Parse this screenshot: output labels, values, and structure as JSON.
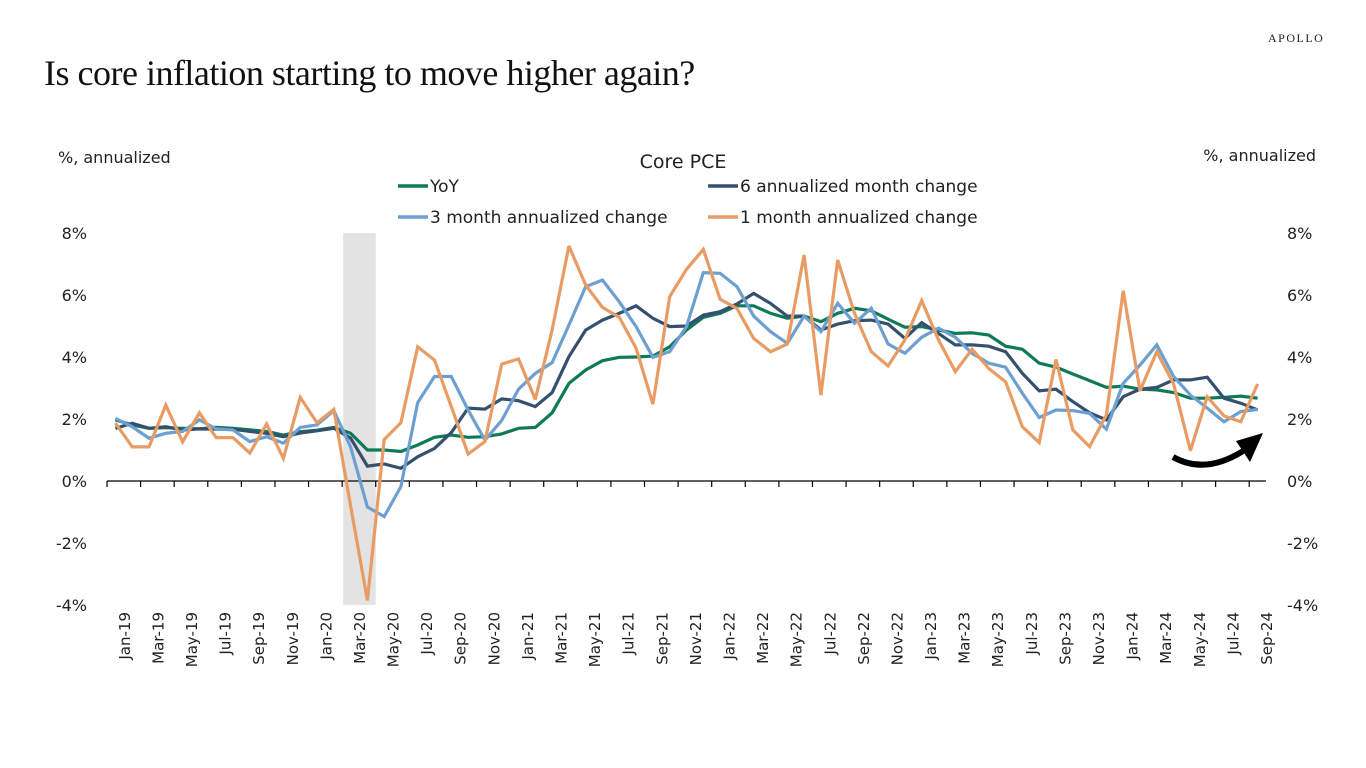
{
  "header": {
    "brand": "APOLLO",
    "title": "Is core inflation starting to move higher again?"
  },
  "chart_data": {
    "type": "line",
    "title": "Core PCE",
    "ylabel_left": "%, annualized",
    "ylabel_right": "%, annualized",
    "xlabel": "",
    "ylim": [
      -4,
      8
    ],
    "yticks": [
      8,
      6,
      4,
      2,
      0,
      -2,
      -4
    ],
    "ytick_labels": [
      "8%",
      "6%",
      "4%",
      "2%",
      "0%",
      "-2%",
      "-4%"
    ],
    "grid": false,
    "legend_placement": "top-center",
    "shaded_region": {
      "label": "recession",
      "from": "Mar-20",
      "to": "Apr-20",
      "color": "#e3e3e3"
    },
    "annotation": {
      "type": "curved-arrow",
      "direction": "up-right",
      "near": "May-24 to Sep-24"
    },
    "x": [
      "Jan-19",
      "Feb-19",
      "Mar-19",
      "Apr-19",
      "May-19",
      "Jun-19",
      "Jul-19",
      "Aug-19",
      "Sep-19",
      "Oct-19",
      "Nov-19",
      "Dec-19",
      "Jan-20",
      "Feb-20",
      "Mar-20",
      "Apr-20",
      "May-20",
      "Jun-20",
      "Jul-20",
      "Aug-20",
      "Sep-20",
      "Oct-20",
      "Nov-20",
      "Dec-20",
      "Jan-21",
      "Feb-21",
      "Mar-21",
      "Apr-21",
      "May-21",
      "Jun-21",
      "Jul-21",
      "Aug-21",
      "Sep-21",
      "Oct-21",
      "Nov-21",
      "Dec-21",
      "Jan-22",
      "Feb-22",
      "Mar-22",
      "Apr-22",
      "May-22",
      "Jun-22",
      "Jul-22",
      "Aug-22",
      "Sep-22",
      "Oct-22",
      "Nov-22",
      "Dec-22",
      "Jan-23",
      "Feb-23",
      "Mar-23",
      "Apr-23",
      "May-23",
      "Jun-23",
      "Jul-23",
      "Aug-23",
      "Sep-23",
      "Oct-23",
      "Nov-23",
      "Dec-23",
      "Jan-24",
      "Feb-24",
      "Mar-24",
      "Apr-24",
      "May-24",
      "Jun-24",
      "Jul-24",
      "Aug-24",
      "Sep-24"
    ],
    "xtick_labels": [
      "Jan-19",
      "Mar-19",
      "May-19",
      "Jul-19",
      "Sep-19",
      "Nov-19",
      "Jan-20",
      "Mar-20",
      "May-20",
      "Jul-20",
      "Sep-20",
      "Nov-20",
      "Jan-21",
      "Mar-21",
      "May-21",
      "Jul-21",
      "Sep-21",
      "Nov-21",
      "Jan-22",
      "Mar-22",
      "May-22",
      "Jul-22",
      "Sep-22",
      "Nov-22",
      "Jan-23",
      "Mar-23",
      "May-23",
      "Jul-23",
      "Sep-23",
      "Nov-23",
      "Jan-24",
      "Mar-24",
      "May-24",
      "Jul-24",
      "Sep-24"
    ],
    "series": [
      {
        "name": "YoY",
        "color": "#0f7a58",
        "values": [
          1.97,
          1.81,
          1.7,
          1.72,
          1.7,
          1.68,
          1.73,
          1.7,
          1.65,
          1.6,
          1.48,
          1.59,
          1.64,
          1.73,
          1.54,
          1.0,
          1.0,
          0.95,
          1.16,
          1.41,
          1.48,
          1.41,
          1.43,
          1.52,
          1.7,
          1.73,
          2.2,
          3.15,
          3.58,
          3.88,
          3.99,
          4.0,
          4.03,
          4.33,
          4.87,
          5.28,
          5.41,
          5.65,
          5.65,
          5.41,
          5.25,
          5.32,
          5.14,
          5.41,
          5.57,
          5.49,
          5.22,
          4.96,
          4.98,
          4.87,
          4.76,
          4.78,
          4.71,
          4.35,
          4.25,
          3.8,
          3.67,
          3.45,
          3.24,
          3.02,
          3.06,
          2.96,
          2.94,
          2.85,
          2.67,
          2.67,
          2.7,
          2.74,
          2.67
        ]
      },
      {
        "name": "6 annualized month change",
        "color": "#34506f",
        "values": [
          1.7,
          1.86,
          1.7,
          1.75,
          1.65,
          1.68,
          1.67,
          1.67,
          1.6,
          1.54,
          1.43,
          1.55,
          1.62,
          1.7,
          1.38,
          0.48,
          0.55,
          0.41,
          0.78,
          1.05,
          1.56,
          2.35,
          2.32,
          2.65,
          2.59,
          2.4,
          2.85,
          4.01,
          4.87,
          5.19,
          5.41,
          5.65,
          5.25,
          4.98,
          5.0,
          5.35,
          5.46,
          5.71,
          6.05,
          5.73,
          5.32,
          5.32,
          4.87,
          5.06,
          5.17,
          5.19,
          5.06,
          4.6,
          5.11,
          4.76,
          4.39,
          4.39,
          4.35,
          4.17,
          3.47,
          2.91,
          2.96,
          2.56,
          2.2,
          1.97,
          2.72,
          2.96,
          3.02,
          3.26,
          3.26,
          3.35,
          2.67,
          2.51,
          2.29
        ]
      },
      {
        "name": "3 month annualized change",
        "color": "#6d9fd0",
        "values": [
          2.02,
          1.75,
          1.38,
          1.54,
          1.6,
          1.97,
          1.68,
          1.65,
          1.27,
          1.43,
          1.22,
          1.73,
          1.81,
          2.27,
          1.1,
          -0.84,
          -1.15,
          -0.18,
          2.53,
          3.37,
          3.37,
          2.29,
          1.32,
          1.95,
          2.96,
          3.47,
          3.82,
          5.03,
          6.27,
          6.48,
          5.78,
          4.98,
          3.99,
          4.17,
          4.98,
          6.72,
          6.7,
          6.27,
          5.32,
          4.82,
          4.44,
          5.32,
          4.82,
          5.73,
          5.09,
          5.57,
          4.42,
          4.12,
          4.64,
          4.93,
          4.64,
          4.12,
          3.8,
          3.67,
          2.83,
          2.05,
          2.29,
          2.27,
          2.18,
          1.67,
          3.15,
          3.74,
          4.39,
          3.37,
          2.77,
          2.35,
          1.91,
          2.24,
          2.31
        ]
      },
      {
        "name": "1 month annualized change",
        "color": "#e89c64",
        "values": [
          1.87,
          1.1,
          1.1,
          2.45,
          1.26,
          2.2,
          1.4,
          1.4,
          0.9,
          1.84,
          0.73,
          2.7,
          1.88,
          2.31,
          -0.8,
          -3.85,
          1.34,
          1.88,
          4.33,
          3.9,
          2.4,
          0.87,
          1.27,
          3.77,
          3.94,
          2.63,
          4.87,
          7.58,
          6.32,
          5.6,
          5.28,
          4.28,
          2.48,
          5.95,
          6.83,
          7.47,
          5.86,
          5.57,
          4.6,
          4.17,
          4.42,
          7.29,
          2.77,
          7.13,
          5.41,
          4.17,
          3.71,
          4.55,
          5.82,
          4.55,
          3.53,
          4.25,
          3.63,
          3.2,
          1.75,
          1.24,
          3.92,
          1.65,
          1.11,
          2.13,
          6.14,
          2.91,
          4.17,
          3.13,
          0.98,
          2.72,
          2.1,
          1.91,
          3.13
        ]
      }
    ],
    "legend": [
      {
        "label": "YoY",
        "series": 0
      },
      {
        "label": "6 annualized month change",
        "series": 1
      },
      {
        "label": "3 month annualized change",
        "series": 2
      },
      {
        "label": "1 month annualized change",
        "series": 3
      }
    ]
  }
}
